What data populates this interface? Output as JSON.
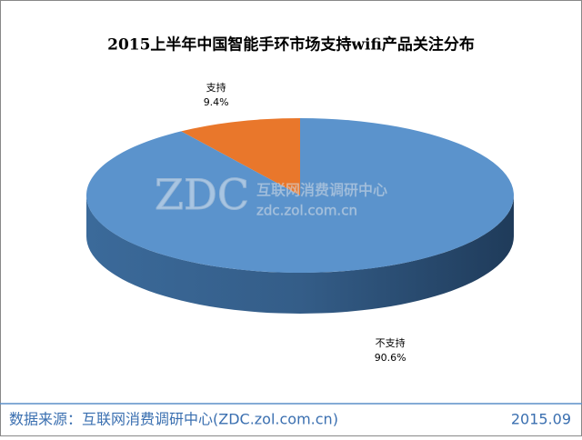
{
  "chart_data": {
    "type": "pie3d",
    "title": "2015上半年中国智能手环市场支持wifi产品关注分布",
    "categories": [
      "支持",
      "不支持"
    ],
    "values": [
      9.4,
      90.6
    ],
    "value_labels": [
      "9.4%",
      "90.6%"
    ],
    "colors": [
      "#e9772b",
      "#5b93cc"
    ]
  },
  "watermark": {
    "logo": "ZDC",
    "name": "互联网消费调研中心",
    "url": "zdc.zol.com.cn"
  },
  "footer": {
    "source": "数据来源：互联网消费调研中心(ZDC.zol.com.cn)",
    "date": "2015.09"
  }
}
